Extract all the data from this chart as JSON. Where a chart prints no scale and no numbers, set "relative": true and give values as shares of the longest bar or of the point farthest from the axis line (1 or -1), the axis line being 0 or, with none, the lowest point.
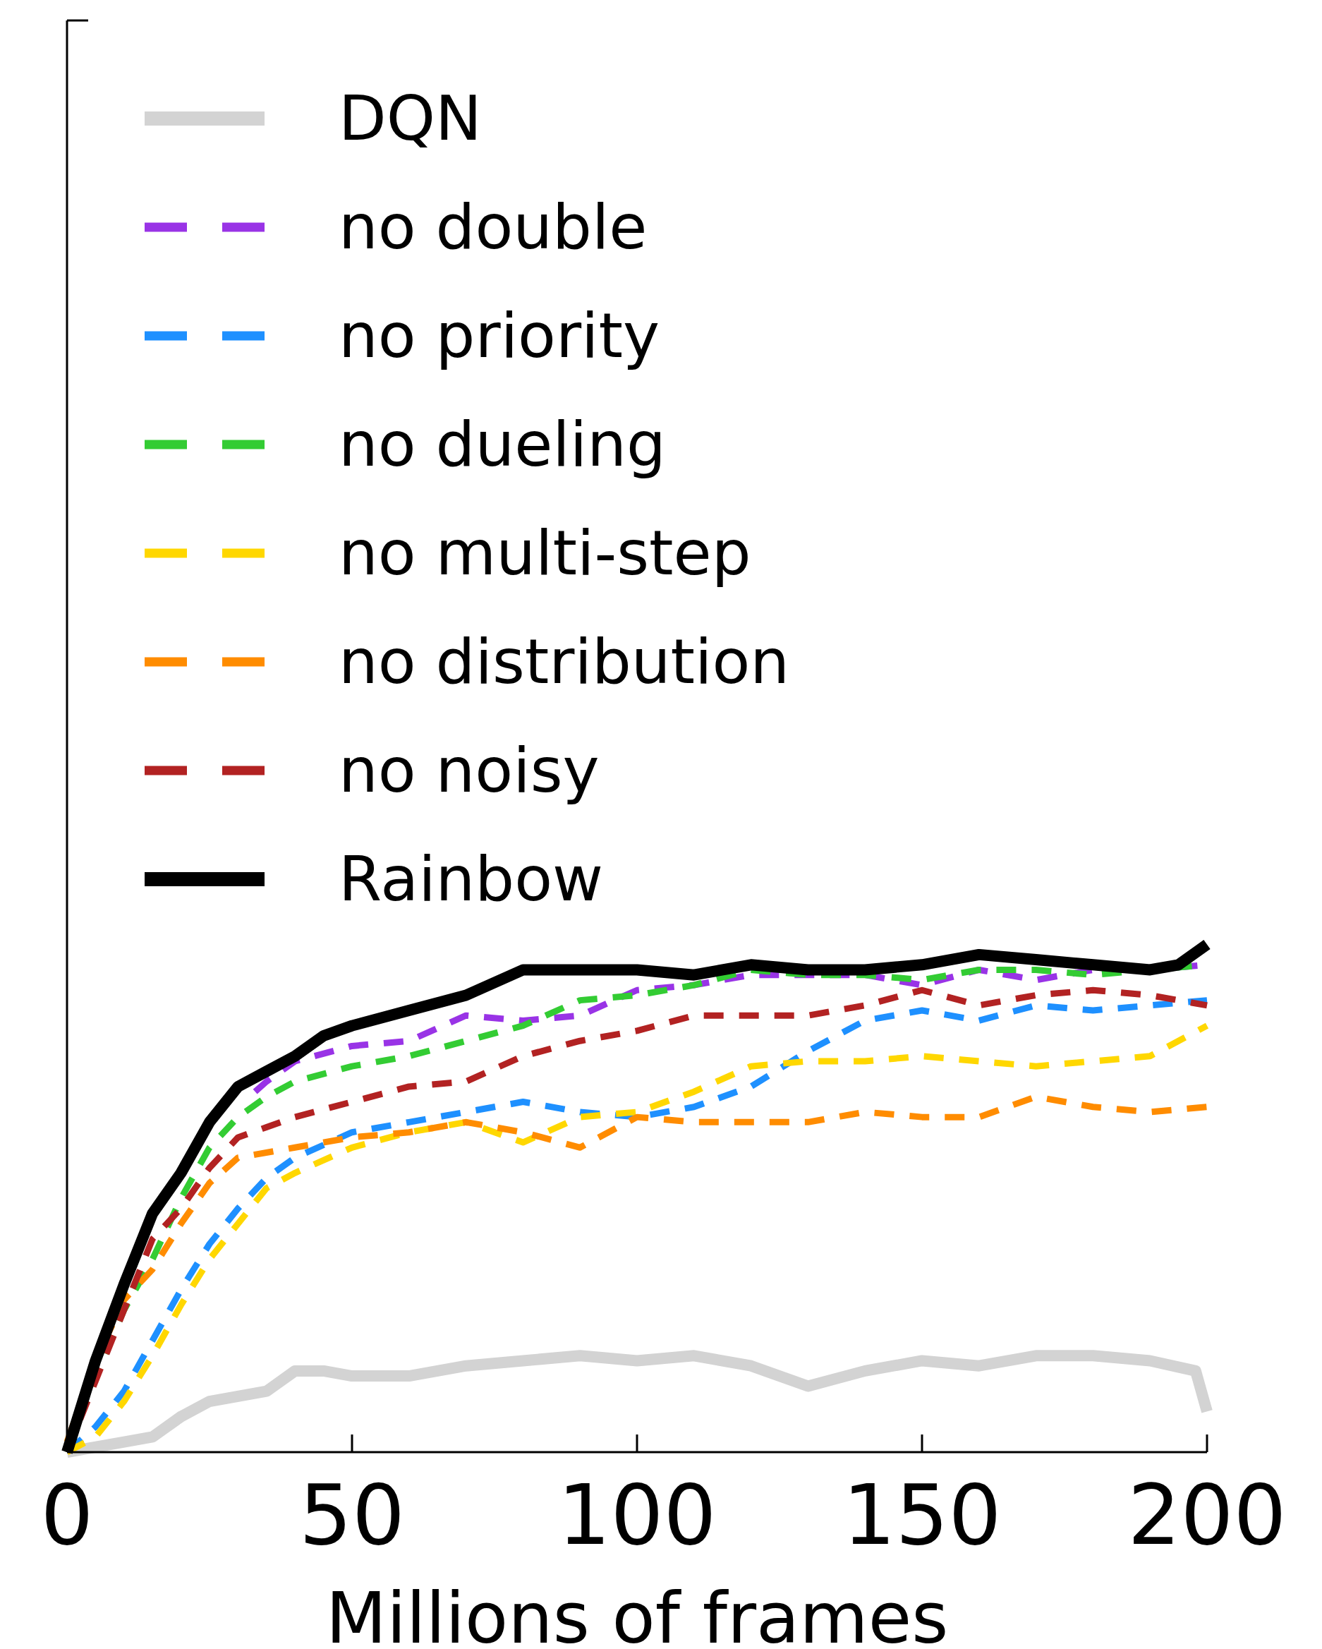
{
  "chart_data": {
    "type": "line",
    "xlabel": "Millions of frames",
    "relative": true,
    "xlim": [
      0,
      200
    ],
    "xticks": [
      0,
      50,
      100,
      150,
      200
    ],
    "legend": "top left",
    "grid": false,
    "series": [
      {
        "name": "DQN",
        "color": "#d3d3d3",
        "line_style": "solid",
        "x": [
          0,
          10,
          15,
          20,
          25,
          30,
          35,
          40,
          45,
          50,
          60,
          70,
          80,
          90,
          100,
          110,
          120,
          130,
          140,
          150,
          160,
          170,
          180,
          190,
          198,
          200
        ],
        "values": [
          0,
          0.02,
          0.03,
          0.07,
          0.1,
          0.11,
          0.12,
          0.16,
          0.16,
          0.15,
          0.15,
          0.17,
          0.18,
          0.19,
          0.18,
          0.19,
          0.17,
          0.13,
          0.16,
          0.18,
          0.17,
          0.19,
          0.19,
          0.18,
          0.16,
          0.08
        ]
      },
      {
        "name": "no double",
        "color": "#9933e6",
        "line_style": "dashed",
        "x": [
          33,
          35,
          40,
          50,
          60,
          70,
          80,
          90,
          100,
          110,
          120,
          130,
          140,
          150,
          160,
          170,
          180,
          190,
          200
        ],
        "values": [
          0.71,
          0.73,
          0.77,
          0.8,
          0.81,
          0.86,
          0.85,
          0.86,
          0.91,
          0.92,
          0.94,
          0.94,
          0.94,
          0.92,
          0.95,
          0.93,
          0.95,
          0.95,
          0.96
        ]
      },
      {
        "name": "no priority",
        "color": "#1e90ff",
        "line_style": "dashed",
        "x": [
          0,
          5,
          10,
          15,
          20,
          25,
          30,
          35,
          40,
          50,
          60,
          70,
          80,
          90,
          100,
          110,
          120,
          130,
          140,
          150,
          160,
          170,
          180,
          190,
          200
        ],
        "values": [
          0,
          0.05,
          0.12,
          0.22,
          0.32,
          0.41,
          0.48,
          0.54,
          0.58,
          0.63,
          0.65,
          0.67,
          0.69,
          0.67,
          0.66,
          0.68,
          0.72,
          0.79,
          0.85,
          0.87,
          0.85,
          0.88,
          0.87,
          0.88,
          0.89
        ]
      },
      {
        "name": "no dueling",
        "color": "#33cc33",
        "line_style": "dashed",
        "x": [
          0,
          5,
          10,
          15,
          20,
          25,
          30,
          35,
          40,
          50,
          60,
          70,
          80,
          90,
          100,
          110,
          120,
          130,
          140,
          150,
          160,
          170,
          180,
          190,
          200
        ],
        "values": [
          0,
          0.15,
          0.28,
          0.38,
          0.5,
          0.6,
          0.66,
          0.7,
          0.73,
          0.76,
          0.78,
          0.81,
          0.84,
          0.89,
          0.9,
          0.92,
          0.95,
          0.94,
          0.94,
          0.93,
          0.95,
          0.95,
          0.94,
          0.95,
          0.96
        ]
      },
      {
        "name": "no multi-step",
        "color": "#ffd700",
        "line_style": "dashed",
        "x": [
          0,
          5,
          10,
          15,
          20,
          25,
          30,
          35,
          40,
          50,
          60,
          70,
          80,
          90,
          100,
          110,
          120,
          130,
          140,
          150,
          160,
          170,
          180,
          190,
          200
        ],
        "values": [
          0,
          0.03,
          0.1,
          0.19,
          0.29,
          0.38,
          0.45,
          0.52,
          0.55,
          0.6,
          0.63,
          0.65,
          0.61,
          0.66,
          0.67,
          0.71,
          0.76,
          0.77,
          0.77,
          0.78,
          0.77,
          0.76,
          0.77,
          0.78,
          0.84
        ]
      },
      {
        "name": "no distribution",
        "color": "#ff8c00",
        "line_style": "dashed",
        "x": [
          0,
          5,
          10,
          15,
          20,
          25,
          30,
          40,
          50,
          60,
          70,
          80,
          90,
          100,
          110,
          120,
          130,
          140,
          150,
          160,
          170,
          180,
          190,
          200
        ],
        "values": [
          0.02,
          0.18,
          0.3,
          0.36,
          0.45,
          0.53,
          0.58,
          0.6,
          0.62,
          0.63,
          0.65,
          0.63,
          0.6,
          0.66,
          0.65,
          0.65,
          0.65,
          0.67,
          0.66,
          0.66,
          0.7,
          0.68,
          0.67,
          0.68
        ]
      },
      {
        "name": "no noisy",
        "color": "#b22222",
        "line_style": "dashed",
        "x": [
          0,
          5,
          10,
          15,
          20,
          25,
          30,
          35,
          40,
          50,
          60,
          70,
          80,
          90,
          100,
          110,
          120,
          130,
          140,
          150,
          160,
          170,
          180,
          190,
          200
        ],
        "values": [
          0,
          0.14,
          0.28,
          0.42,
          0.48,
          0.56,
          0.62,
          0.64,
          0.66,
          0.69,
          0.72,
          0.73,
          0.78,
          0.81,
          0.83,
          0.86,
          0.86,
          0.86,
          0.88,
          0.91,
          0.88,
          0.9,
          0.91,
          0.9,
          0.88
        ]
      },
      {
        "name": "Rainbow",
        "color": "#000000",
        "line_style": "solid",
        "x": [
          0,
          5,
          10,
          15,
          20,
          25,
          30,
          35,
          40,
          45,
          50,
          60,
          70,
          80,
          90,
          100,
          110,
          120,
          130,
          140,
          150,
          160,
          170,
          180,
          190,
          195,
          200
        ],
        "values": [
          0,
          0.18,
          0.33,
          0.47,
          0.55,
          0.65,
          0.72,
          0.75,
          0.78,
          0.82,
          0.84,
          0.87,
          0.9,
          0.95,
          0.95,
          0.95,
          0.94,
          0.96,
          0.95,
          0.95,
          0.96,
          0.98,
          0.97,
          0.96,
          0.95,
          0.96,
          1.0
        ]
      }
    ]
  }
}
